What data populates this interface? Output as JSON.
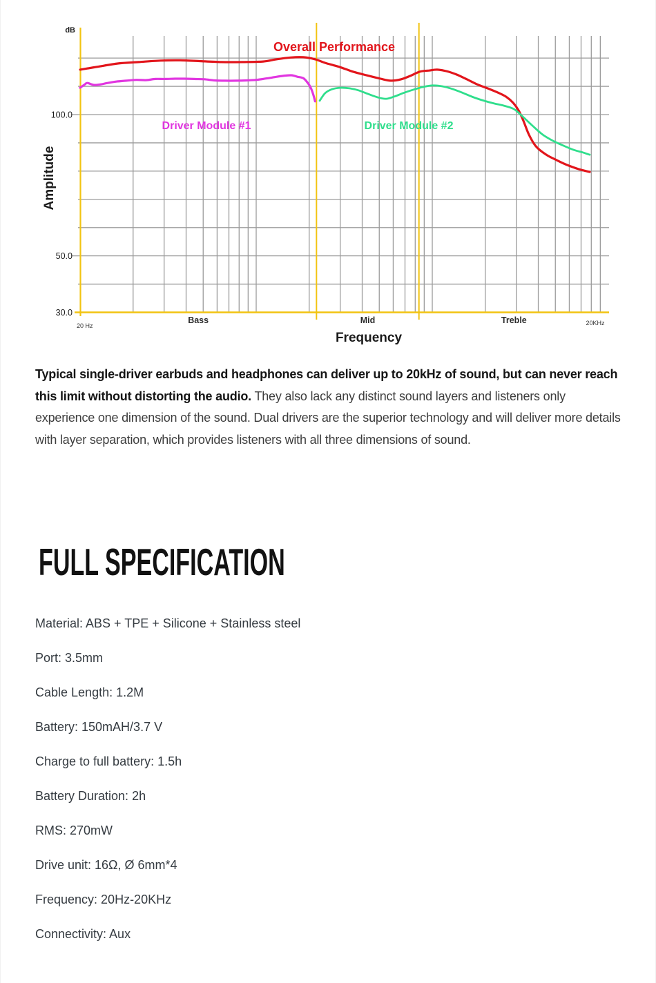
{
  "chart_data": {
    "type": "line",
    "title": "",
    "x_axis": {
      "label": "Frequency",
      "scale": "log",
      "min_hz": 20,
      "max_hz": 20000,
      "min_label": "20 Hz",
      "max_label": "20KHz"
    },
    "y_axis": {
      "label": "Amplitude",
      "unit": "dB",
      "scale": "linear",
      "grid_min": 30,
      "grid_max": 120,
      "gridline_step": 10,
      "tick_values": [
        100,
        50,
        30
      ],
      "tick_labels": [
        "100.0",
        "50.0",
        "30.0"
      ]
    },
    "bands": [
      {
        "label": "Bass"
      },
      {
        "label": "Mid"
      },
      {
        "label": "Treble"
      }
    ],
    "band_separators_hz": [
      440,
      1680
    ],
    "axis_color": "#F2C411",
    "grid_color": "#9B9B9B",
    "legend_position": "labels-on-chart",
    "series": [
      {
        "name": "Overall Performance",
        "color": "#E2151B",
        "points": [
          [
            20,
            115.9
          ],
          [
            25,
            116.9
          ],
          [
            33,
            118.1
          ],
          [
            43,
            118.6
          ],
          [
            57,
            119.1
          ],
          [
            74,
            119.2
          ],
          [
            97,
            118.9
          ],
          [
            127,
            118.6
          ],
          [
            167,
            118.6
          ],
          [
            219,
            118.8
          ],
          [
            262,
            119.6
          ],
          [
            314,
            120.2
          ],
          [
            370,
            120.3
          ],
          [
            431,
            119.6
          ],
          [
            493,
            118.3
          ],
          [
            591,
            116.9
          ],
          [
            708,
            115.2
          ],
          [
            848,
            113.9
          ],
          [
            1016,
            112.7
          ],
          [
            1163,
            112.0
          ],
          [
            1332,
            112.5
          ],
          [
            1526,
            113.9
          ],
          [
            1700,
            115.2
          ],
          [
            1912,
            115.6
          ],
          [
            2131,
            115.9
          ],
          [
            2397,
            115.4
          ],
          [
            2744,
            114.2
          ],
          [
            3142,
            112.5
          ],
          [
            3598,
            110.7
          ],
          [
            4118,
            109.3
          ],
          [
            4716,
            107.8
          ],
          [
            5257,
            106.3
          ],
          [
            5753,
            104.2
          ],
          [
            6185,
            101.5
          ],
          [
            6588,
            97.8
          ],
          [
            7083,
            92.9
          ],
          [
            7748,
            88.8
          ],
          [
            8872,
            85.8
          ],
          [
            10160,
            83.9
          ],
          [
            11634,
            82.2
          ],
          [
            13564,
            80.7
          ],
          [
            15671,
            79.7
          ]
        ]
      },
      {
        "name": "Driver Module #1",
        "color": "#E136E0",
        "points": [
          [
            20,
            109.5
          ],
          [
            21.3,
            110.7
          ],
          [
            22,
            111.2
          ],
          [
            23.9,
            110.5
          ],
          [
            26.2,
            110.7
          ],
          [
            28.7,
            111.2
          ],
          [
            32.3,
            111.7
          ],
          [
            36.6,
            112.0
          ],
          [
            41.6,
            112.3
          ],
          [
            47.2,
            112.2
          ],
          [
            53.5,
            112.6
          ],
          [
            60.7,
            112.6
          ],
          [
            68.9,
            112.7
          ],
          [
            78.1,
            112.7
          ],
          [
            88.7,
            112.6
          ],
          [
            101.6,
            112.5
          ],
          [
            116.3,
            112.1
          ],
          [
            133,
            112.0
          ],
          [
            153,
            112.0
          ],
          [
            175,
            112.1
          ],
          [
            200,
            112.3
          ],
          [
            229,
            112.8
          ],
          [
            262,
            113.4
          ],
          [
            292,
            113.8
          ],
          [
            320,
            113.9
          ],
          [
            343,
            113.4
          ],
          [
            370,
            112.9
          ],
          [
            389,
            111.5
          ],
          [
            406,
            109.8
          ],
          [
            421,
            107.3
          ],
          [
            432,
            104.7
          ]
        ]
      },
      {
        "name": "Driver Module #2",
        "color": "#2FDE8C",
        "points": [
          [
            459,
            104.9
          ],
          [
            493,
            107.6
          ],
          [
            540,
            109.0
          ],
          [
            602,
            109.5
          ],
          [
            677,
            109.3
          ],
          [
            761,
            108.6
          ],
          [
            864,
            107.3
          ],
          [
            980,
            106.1
          ],
          [
            1092,
            105.6
          ],
          [
            1218,
            106.4
          ],
          [
            1394,
            107.8
          ],
          [
            1596,
            109.0
          ],
          [
            1778,
            109.8
          ],
          [
            2000,
            110.3
          ],
          [
            2290,
            110.0
          ],
          [
            2622,
            109.0
          ],
          [
            3004,
            107.6
          ],
          [
            3438,
            106.1
          ],
          [
            3930,
            104.9
          ],
          [
            4506,
            103.9
          ],
          [
            5070,
            103.2
          ],
          [
            5800,
            102.0
          ],
          [
            6468,
            99.5
          ],
          [
            7406,
            96.1
          ],
          [
            8482,
            92.9
          ],
          [
            9712,
            90.7
          ],
          [
            11121,
            89.0
          ],
          [
            12734,
            87.5
          ],
          [
            14318,
            86.6
          ],
          [
            15671,
            85.8
          ]
        ]
      }
    ]
  },
  "description": {
    "intro_bold": "Typical single-driver earbuds and headphones can deliver up to 20kHz of sound, but can never reach this limit without distorting the audio.",
    "intro_rest": " They also lack any distinct sound layers and listeners only experience one dimension of the sound. Dual drivers are the superior technology and will deliver more details with layer separation, which provides listeners with all three dimensions of sound."
  },
  "spec": {
    "heading": "FULL SPECIFICATION",
    "items": [
      "Material: ABS + TPE + Silicone + Stainless steel",
      "Port: 3.5mm",
      "Cable Length: 1.2M",
      "Battery: 150mAH/3.7 V",
      "Charge to full battery: 1.5h",
      "Battery Duration: 2h",
      "RMS: 270mW",
      "Drive unit: 16Ω, Ø 6mm*4",
      "Frequency: 20Hz-20KHz",
      "Connectivity: Aux"
    ]
  }
}
